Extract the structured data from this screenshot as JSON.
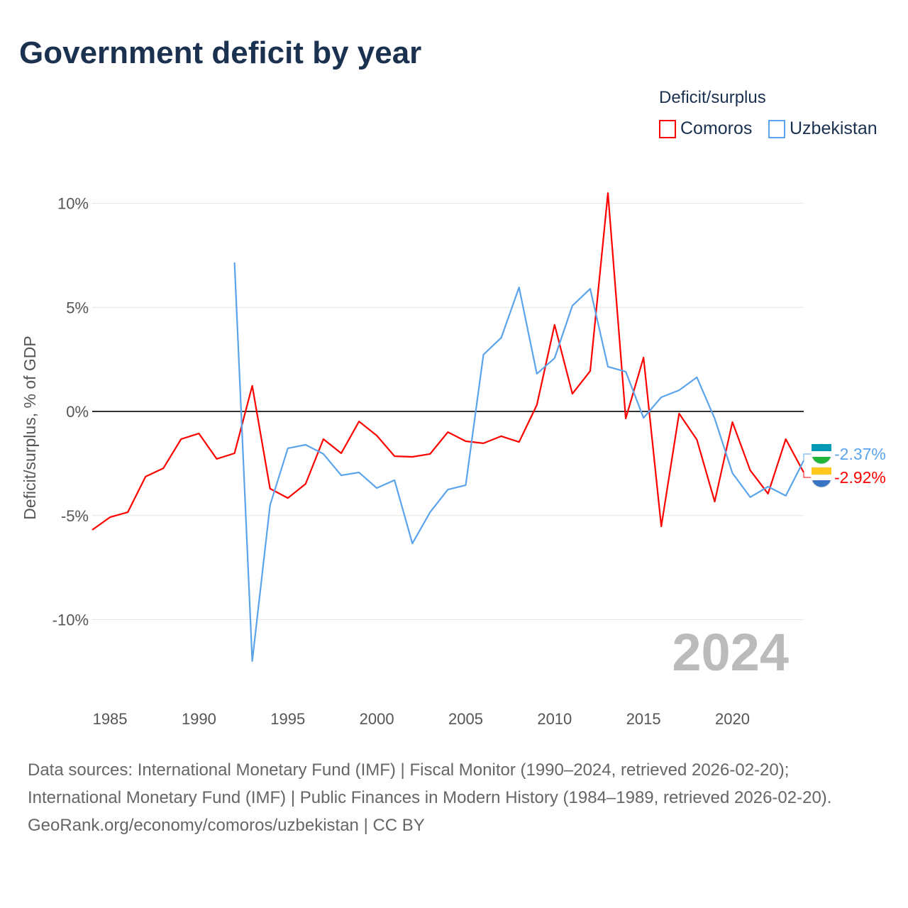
{
  "title": "Government deficit by year",
  "legend": {
    "title": "Deficit/surplus",
    "items": [
      {
        "name": "Comoros",
        "color": "#ff0000"
      },
      {
        "name": "Uzbekistan",
        "color": "#5ba4eb"
      }
    ]
  },
  "year_label": "2024",
  "end_labels": {
    "Uzbekistan": "-2.37%",
    "Comoros": "-2.92%"
  },
  "footer": {
    "sources": "Data sources: International Monetary Fund (IMF) | Fiscal Monitor (1990–2024, retrieved 2026-02-20); International Monetary Fund (IMF) | Public Finances in Modern History (1984–1989, retrieved 2026-02-20).",
    "credit": "GeoRank.org/economy/comoros/uzbekistan | CC BY"
  },
  "chart_data": {
    "type": "line",
    "ylabel": "Deficit/surplus, % of GDP",
    "xlim": [
      1984,
      2024
    ],
    "ylim": [
      -13,
      11
    ],
    "xticks": [
      1985,
      1990,
      1995,
      2000,
      2005,
      2010,
      2015,
      2020
    ],
    "yticks": [
      {
        "v": 10,
        "label": "10%"
      },
      {
        "v": 5,
        "label": "5%"
      },
      {
        "v": 0,
        "label": "0%"
      },
      {
        "v": -5,
        "label": "-5%"
      },
      {
        "v": -10,
        "label": "-10%"
      }
    ],
    "series": [
      {
        "name": "Comoros",
        "color": "#ff0000",
        "start": 1984,
        "values": [
          -5.69,
          -5.08,
          -4.84,
          -3.13,
          -2.73,
          -1.33,
          -1.06,
          -2.28,
          -2.01,
          1.23,
          -3.71,
          -4.16,
          -3.48,
          -1.33,
          -2.01,
          -0.48,
          -1.16,
          -2.15,
          -2.18,
          -2.04,
          -0.99,
          -1.43,
          -1.53,
          -1.19,
          -1.47,
          0.31,
          4.16,
          0.85,
          1.94,
          10.49,
          -0.34,
          2.59,
          -5.52,
          -0.1,
          -1.36,
          -4.33,
          -0.51,
          -2.83,
          -3.95,
          -1.33,
          -2.92
        ]
      },
      {
        "name": "Uzbekistan",
        "color": "#5ba4eb",
        "start": 1992,
        "values": [
          7.15,
          -11.99,
          -4.5,
          -1.77,
          -1.6,
          -2.04,
          -3.07,
          -2.93,
          -3.68,
          -3.3,
          -6.34,
          -4.84,
          -3.75,
          -3.54,
          2.73,
          3.54,
          5.96,
          1.81,
          2.56,
          5.08,
          5.89,
          2.15,
          1.91,
          -0.31,
          0.68,
          1.02,
          1.64,
          -0.34,
          -2.96,
          -4.12,
          -3.61,
          -4.05,
          -2.37
        ]
      }
    ]
  }
}
